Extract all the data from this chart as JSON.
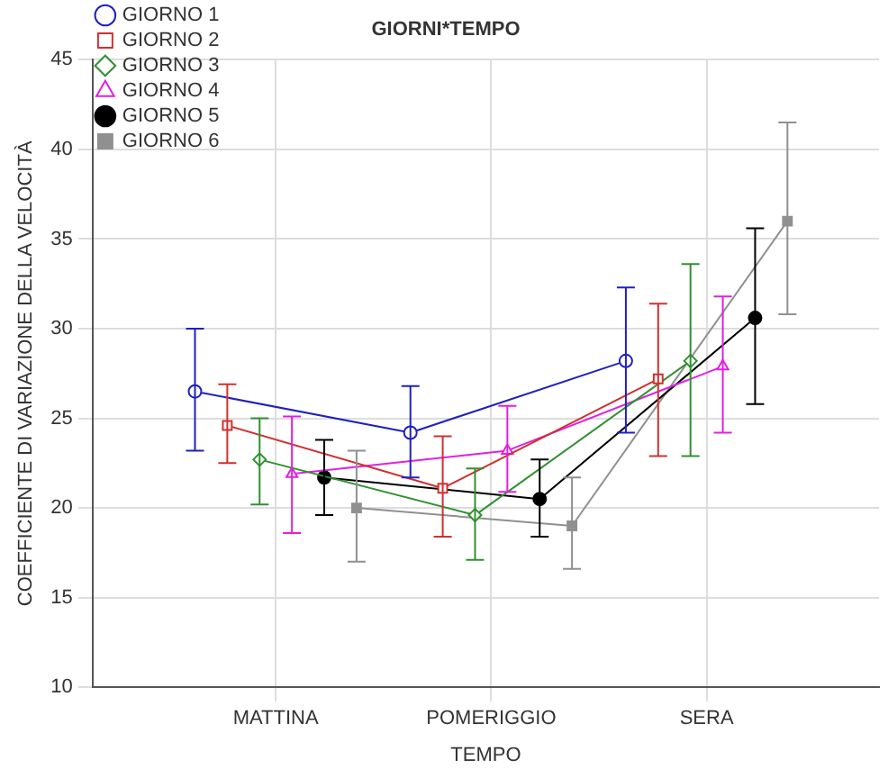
{
  "chart_data": {
    "type": "line",
    "title": "GIORNI*TEMPO",
    "xlabel": "TEMPO",
    "ylabel": "COEFFICIENTE DI VARIAZIONE DELLA VELOCITÀ",
    "categories": [
      "MATTINA",
      "POMERIGGIO",
      "SERA"
    ],
    "ylim": [
      10,
      45
    ],
    "yticks": [
      10,
      15,
      20,
      25,
      30,
      35,
      40,
      45
    ],
    "grid": true,
    "legend": "top left",
    "series": [
      {
        "name": "GIORNO 1",
        "color": "#2020c0",
        "marker": "circle",
        "values": [
          26.5,
          24.2,
          28.2
        ],
        "errors": [
          [
            23.2,
            30.0
          ],
          [
            21.7,
            26.8
          ],
          [
            24.2,
            32.3
          ]
        ]
      },
      {
        "name": "GIORNO 2",
        "color": "#d03030",
        "marker": "square",
        "values": [
          24.6,
          21.1,
          27.2
        ],
        "errors": [
          [
            22.5,
            26.9
          ],
          [
            18.4,
            24.0
          ],
          [
            22.9,
            31.4
          ]
        ]
      },
      {
        "name": "GIORNO 3",
        "color": "#309030",
        "marker": "diamond",
        "values": [
          22.7,
          19.6,
          28.2
        ],
        "errors": [
          [
            20.2,
            25.0
          ],
          [
            17.1,
            22.2
          ],
          [
            22.9,
            33.6
          ]
        ]
      },
      {
        "name": "GIORNO 4",
        "color": "#e020e0",
        "marker": "triangle",
        "values": [
          21.9,
          23.2,
          27.9
        ],
        "errors": [
          [
            18.6,
            25.1
          ],
          [
            20.9,
            25.7
          ],
          [
            24.2,
            31.8
          ]
        ]
      },
      {
        "name": "GIORNO 5",
        "color": "#000000",
        "marker": "circle",
        "values": [
          21.7,
          20.5,
          30.6
        ],
        "errors": [
          [
            19.6,
            23.8
          ],
          [
            18.4,
            22.7
          ],
          [
            25.8,
            35.6
          ]
        ]
      },
      {
        "name": "GIORNO 6",
        "color": "#909090",
        "marker": "square",
        "values": [
          20.0,
          19.0,
          36.0
        ],
        "errors": [
          [
            17.0,
            23.2
          ],
          [
            16.6,
            21.7
          ],
          [
            30.8,
            41.5
          ]
        ]
      }
    ]
  }
}
